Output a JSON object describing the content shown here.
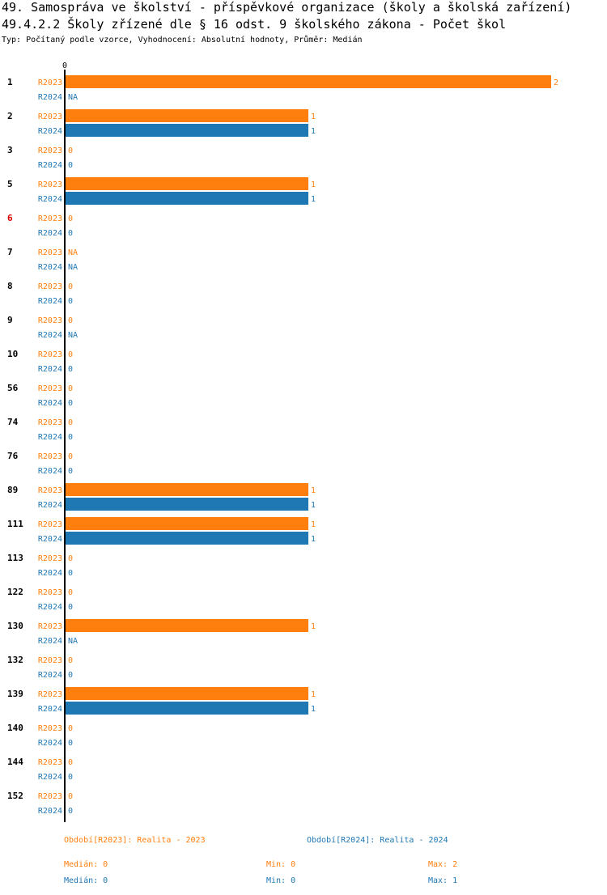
{
  "header": {
    "title": "49. Samospráva ve školství - příspěvkové organizace (školy a školská zařízení)",
    "subtitle": "49.4.2.2 Školy zřízené dle § 16 odst. 9 školského zákona - Počet škol",
    "info": "Typ: Počítaný podle vzorce, Vyhodnocení: Absolutní hodnoty, Průměr: Medián"
  },
  "colors": {
    "r2023": "#ff7f0e",
    "r2024": "#1f77b4",
    "highlight": "#dd0000",
    "axis": "#000000"
  },
  "chart_data": {
    "type": "bar",
    "orientation": "horizontal",
    "x_tick_label": "0",
    "xlim": [
      0,
      2
    ],
    "na_label": "NA",
    "categories": [
      {
        "label": "1",
        "highlight": false
      },
      {
        "label": "2",
        "highlight": false
      },
      {
        "label": "3",
        "highlight": false
      },
      {
        "label": "5",
        "highlight": false
      },
      {
        "label": "6",
        "highlight": true
      },
      {
        "label": "7",
        "highlight": false
      },
      {
        "label": "8",
        "highlight": false
      },
      {
        "label": "9",
        "highlight": false
      },
      {
        "label": "10",
        "highlight": false
      },
      {
        "label": "56",
        "highlight": false
      },
      {
        "label": "74",
        "highlight": false
      },
      {
        "label": "76",
        "highlight": false
      },
      {
        "label": "89",
        "highlight": false
      },
      {
        "label": "111",
        "highlight": false
      },
      {
        "label": "113",
        "highlight": false
      },
      {
        "label": "122",
        "highlight": false
      },
      {
        "label": "130",
        "highlight": false
      },
      {
        "label": "132",
        "highlight": false
      },
      {
        "label": "139",
        "highlight": false
      },
      {
        "label": "140",
        "highlight": false
      },
      {
        "label": "144",
        "highlight": false
      },
      {
        "label": "152",
        "highlight": false
      }
    ],
    "series": [
      {
        "name": "R2023",
        "color": "#ff7f0e",
        "values": [
          2,
          1,
          0,
          1,
          0,
          null,
          0,
          0,
          0,
          0,
          0,
          0,
          1,
          1,
          0,
          0,
          1,
          0,
          1,
          0,
          0,
          0
        ]
      },
      {
        "name": "R2024",
        "color": "#1f77b4",
        "values": [
          null,
          1,
          0,
          1,
          0,
          null,
          0,
          null,
          0,
          0,
          0,
          0,
          1,
          1,
          0,
          0,
          null,
          0,
          1,
          0,
          0,
          0
        ]
      }
    ]
  },
  "legend": {
    "periods": [
      "Období[R2023]: Realita - 2023",
      "Období[R2024]: Realita - 2024"
    ],
    "stats": [
      {
        "median": "Medián: 0",
        "min": "Min: 0",
        "max": "Max: 2"
      },
      {
        "median": "Medián: 0",
        "min": "Min: 0",
        "max": "Max: 1"
      }
    ]
  }
}
